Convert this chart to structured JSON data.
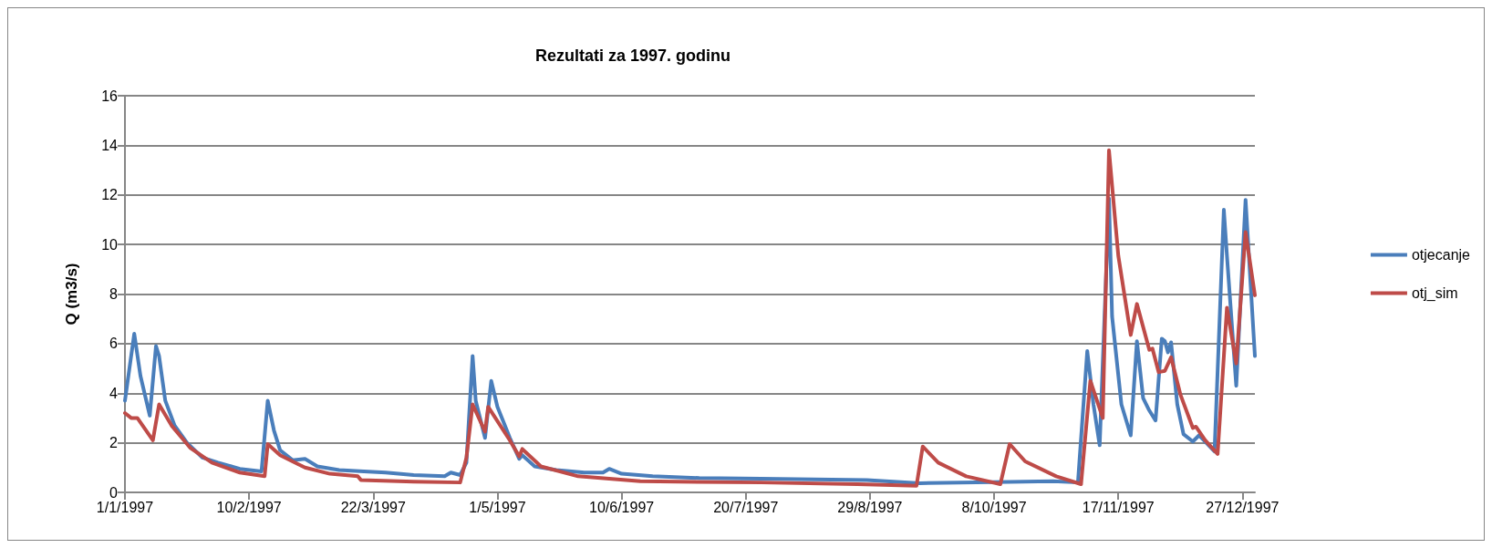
{
  "chart_data": {
    "type": "line",
    "title": "Rezultati za 1997. godinu",
    "ylabel": "Q (m3/s)",
    "xlim": [
      "1997-01-01",
      "1997-12-31"
    ],
    "xticks": [
      {
        "value": "1997-01-01",
        "label": "1/1/1997"
      },
      {
        "value": "1997-02-10",
        "label": "10/2/1997"
      },
      {
        "value": "1997-03-22",
        "label": "22/3/1997"
      },
      {
        "value": "1997-05-01",
        "label": "1/5/1997"
      },
      {
        "value": "1997-06-10",
        "label": "10/6/1997"
      },
      {
        "value": "1997-07-20",
        "label": "20/7/1997"
      },
      {
        "value": "1997-08-29",
        "label": "29/8/1997"
      },
      {
        "value": "1997-10-08",
        "label": "8/10/1997"
      },
      {
        "value": "1997-11-17",
        "label": "17/11/1997"
      },
      {
        "value": "1997-12-27",
        "label": "27/12/1997"
      }
    ],
    "ylim": [
      0,
      16
    ],
    "yticks": [
      0,
      2,
      4,
      6,
      8,
      10,
      12,
      14,
      16
    ],
    "grid": "y",
    "legend": "right",
    "marker": "none",
    "line_style": "solid",
    "series": [
      {
        "name": "otjecanje",
        "color": "#4a7ebb",
        "x": [
          "1997-01-01",
          "1997-01-04",
          "1997-01-06",
          "1997-01-09",
          "1997-01-11",
          "1997-01-12",
          "1997-01-14",
          "1997-01-17",
          "1997-01-21",
          "1997-01-26",
          "1997-01-31",
          "1997-02-07",
          "1997-02-14",
          "1997-02-16",
          "1997-02-18",
          "1997-02-20",
          "1997-02-24",
          "1997-02-28",
          "1997-03-04",
          "1997-03-11",
          "1997-03-19",
          "1997-03-26",
          "1997-04-04",
          "1997-04-14",
          "1997-04-16",
          "1997-04-19",
          "1997-04-21",
          "1997-04-23",
          "1997-04-24",
          "1997-04-27",
          "1997-04-29",
          "1997-05-01",
          "1997-05-05",
          "1997-05-08",
          "1997-05-09",
          "1997-05-13",
          "1997-05-20",
          "1997-05-29",
          "1997-06-04",
          "1997-06-06",
          "1997-06-10",
          "1997-06-20",
          "1997-07-05",
          "1997-07-25",
          "1997-08-28",
          "1997-09-14",
          "1997-10-13",
          "1997-10-27",
          "1997-11-04",
          "1997-11-07",
          "1997-11-09",
          "1997-11-11",
          "1997-11-14",
          "1997-11-15",
          "1997-11-18",
          "1997-11-21",
          "1997-11-23",
          "1997-11-25",
          "1997-11-27",
          "1997-11-29",
          "1997-12-01",
          "1997-12-02",
          "1997-12-03",
          "1997-12-04",
          "1997-12-06",
          "1997-12-08",
          "1997-12-11",
          "1997-12-13",
          "1997-12-18",
          "1997-12-21",
          "1997-12-22",
          "1997-12-25",
          "1997-12-28",
          "1997-12-31"
        ],
        "values": [
          3.7,
          6.4,
          4.7,
          3.1,
          5.9,
          5.5,
          3.7,
          2.7,
          2.0,
          1.4,
          1.2,
          0.95,
          0.85,
          3.7,
          2.5,
          1.7,
          1.3,
          1.35,
          1.05,
          0.9,
          0.85,
          0.8,
          0.7,
          0.65,
          0.8,
          0.7,
          1.2,
          5.5,
          3.7,
          2.2,
          4.5,
          3.45,
          2.2,
          1.35,
          1.5,
          1.05,
          0.9,
          0.8,
          0.8,
          0.95,
          0.75,
          0.65,
          0.58,
          0.55,
          0.5,
          0.37,
          0.42,
          0.45,
          0.4,
          5.7,
          3.55,
          1.9,
          11.85,
          7.1,
          3.55,
          2.3,
          6.1,
          3.8,
          3.3,
          2.9,
          6.2,
          6.1,
          5.65,
          6.05,
          3.55,
          2.35,
          2.05,
          2.3,
          1.65,
          11.4,
          9.55,
          4.3,
          11.8,
          5.5
        ]
      },
      {
        "name": "otj_sim",
        "color": "#be4b48",
        "x": [
          "1997-01-01",
          "1997-01-03",
          "1997-01-05",
          "1997-01-10",
          "1997-01-12",
          "1997-01-16",
          "1997-01-22",
          "1997-01-29",
          "1997-02-07",
          "1997-02-15",
          "1997-02-16",
          "1997-02-20",
          "1997-02-28",
          "1997-03-08",
          "1997-03-17",
          "1997-03-18",
          "1997-04-04",
          "1997-04-19",
          "1997-04-21",
          "1997-04-23",
          "1997-04-27",
          "1997-04-28",
          "1997-05-05",
          "1997-05-08",
          "1997-05-09",
          "1997-05-15",
          "1997-05-27",
          "1997-06-16",
          "1997-07-25",
          "1997-08-25",
          "1997-09-13",
          "1997-09-15",
          "1997-09-20",
          "1997-09-29",
          "1997-10-10",
          "1997-10-13",
          "1997-10-18",
          "1997-10-28",
          "1997-11-05",
          "1997-11-08",
          "1997-11-12",
          "1997-11-14",
          "1997-11-17",
          "1997-11-21",
          "1997-11-23",
          "1997-11-27",
          "1997-11-28",
          "1997-11-30",
          "1997-12-02",
          "1997-12-04",
          "1997-12-07",
          "1997-12-11",
          "1997-12-12",
          "1997-12-15",
          "1997-12-19",
          "1997-12-22",
          "1997-12-25",
          "1997-12-28",
          "1997-12-31"
        ],
        "values": [
          3.2,
          3.0,
          3.0,
          2.1,
          3.55,
          2.7,
          1.8,
          1.2,
          0.8,
          0.65,
          1.95,
          1.5,
          1.0,
          0.75,
          0.65,
          0.5,
          0.43,
          0.4,
          1.4,
          3.55,
          2.45,
          3.45,
          2.1,
          1.45,
          1.75,
          1.05,
          0.65,
          0.45,
          0.4,
          0.33,
          0.27,
          1.85,
          1.2,
          0.65,
          0.33,
          1.95,
          1.25,
          0.65,
          0.33,
          4.5,
          3.0,
          13.8,
          9.55,
          6.35,
          7.6,
          5.75,
          5.8,
          4.85,
          4.9,
          5.45,
          3.95,
          2.6,
          2.65,
          2.1,
          1.55,
          7.45,
          5.2,
          10.5,
          7.95
        ]
      }
    ]
  }
}
